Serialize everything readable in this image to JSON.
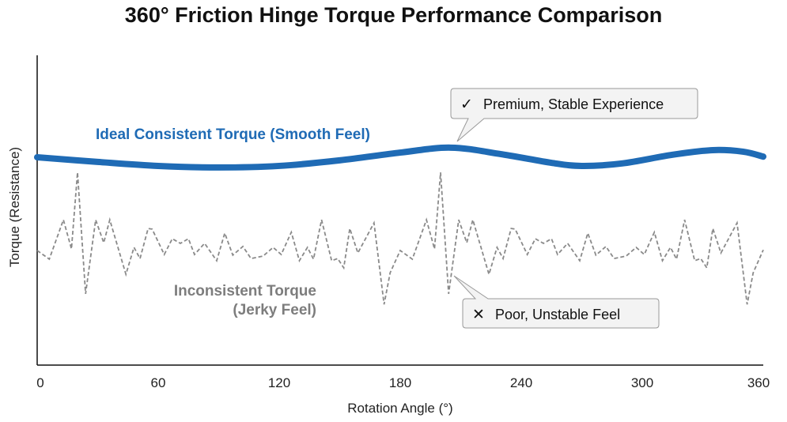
{
  "chart_data": {
    "type": "line",
    "title": "360° Friction Hinge Torque Performance Comparison",
    "xlabel": "Rotation Angle (°)",
    "ylabel": "Torque (Resistance)",
    "xlim": [
      0,
      360
    ],
    "ylim": [
      0,
      100
    ],
    "xticks": [
      "0",
      "60",
      "120",
      "180",
      "240",
      "300",
      "360"
    ],
    "grid": false,
    "colors": {
      "ideal": "#1f6bb5",
      "inconsistent": "#8a8a8a"
    },
    "series": [
      {
        "name": "Ideal Consistent Torque (Smooth Feel)",
        "style": "solid-thick",
        "x": [
          0,
          30,
          60,
          90,
          120,
          150,
          180,
          205,
          230,
          255,
          270,
          290,
          315,
          335,
          350,
          360
        ],
        "y": [
          67.1,
          65.6,
          64.3,
          63.8,
          64.3,
          66.1,
          68.6,
          70.2,
          68.1,
          65.3,
          64.3,
          65.1,
          67.9,
          69.4,
          68.9,
          67.3
        ]
      },
      {
        "name": "Inconsistent Torque (Jerky Feel)",
        "style": "dashed",
        "x": [
          0,
          6,
          13,
          17,
          20,
          24,
          29,
          33,
          36,
          44,
          48,
          51,
          55,
          57,
          63,
          67,
          71,
          75,
          78,
          83,
          89,
          93,
          97,
          102,
          106,
          112,
          117,
          121,
          126,
          130,
          134,
          137,
          141,
          146,
          149,
          152,
          155,
          159,
          167,
          172,
          175,
          180,
          186,
          193,
          197,
          200,
          204,
          209,
          213,
          216,
          224,
          228,
          231,
          235,
          237,
          243,
          247,
          251,
          255,
          258,
          263,
          269,
          273,
          277,
          282,
          286,
          292,
          297,
          301,
          306,
          310,
          314,
          317,
          321,
          326,
          329,
          332,
          335,
          339,
          347,
          352,
          355,
          360
        ],
        "y": [
          37.0,
          34.2,
          46.9,
          37.5,
          62.2,
          23.0,
          46.9,
          39.5,
          46.9,
          29.3,
          38.0,
          34.4,
          44.1,
          43.9,
          35.7,
          40.8,
          39.3,
          40.8,
          35.7,
          39.3,
          33.7,
          42.6,
          35.5,
          38.3,
          34.4,
          35.2,
          38.0,
          35.7,
          42.9,
          33.7,
          38.0,
          34.2,
          46.9,
          33.7,
          34.4,
          31.4,
          44.1,
          36.2,
          45.9,
          19.6,
          29.8,
          37.0,
          34.2,
          46.9,
          37.5,
          62.2,
          23.0,
          46.9,
          39.5,
          46.9,
          29.3,
          38.0,
          34.4,
          44.1,
          43.9,
          35.7,
          40.8,
          39.3,
          40.8,
          35.7,
          39.3,
          33.7,
          42.6,
          35.5,
          38.3,
          34.4,
          35.2,
          38.0,
          35.7,
          42.9,
          33.7,
          38.0,
          34.2,
          46.9,
          33.7,
          34.4,
          31.4,
          44.1,
          36.2,
          45.9,
          19.6,
          29.8,
          37.2
        ]
      }
    ],
    "series_labels": {
      "ideal": "Ideal Consistent Torque (Smooth Feel)",
      "inconsistent_line1": "Inconsistent Torque",
      "inconsistent_line2": "(Jerky Feel)"
    },
    "annotations": [
      {
        "icon": "check-icon",
        "symbol": "✓",
        "text": "Premium, Stable Experience",
        "target_series": "ideal",
        "target_x": 205
      },
      {
        "icon": "x-icon",
        "symbol": "✕",
        "text": "Poor, Unstable Feel",
        "target_series": "inconsistent",
        "target_x": 206
      }
    ]
  }
}
